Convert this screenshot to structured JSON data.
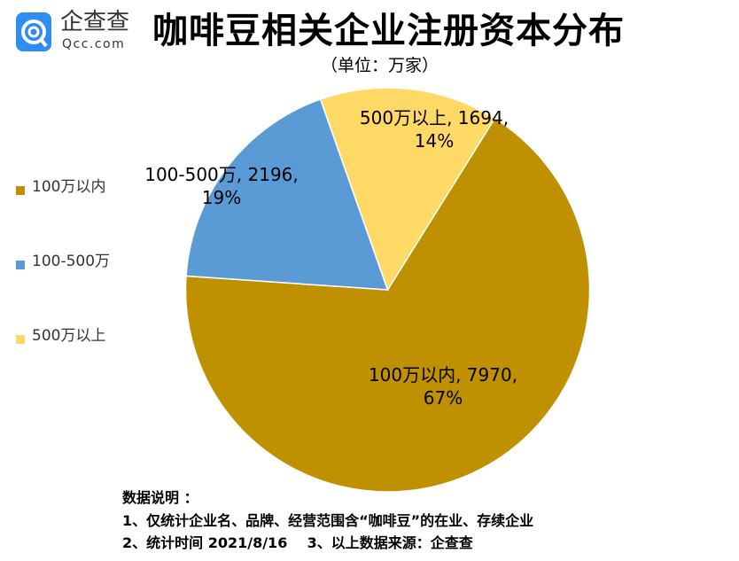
{
  "logo": {
    "name": "企查查",
    "domain": "Qcc.com"
  },
  "chart_data": {
    "type": "pie",
    "title": "咖啡豆相关企业注册资本分布",
    "subtitle": "（单位：万家）",
    "categories": [
      "100万以内",
      "100-500万",
      "500万以上"
    ],
    "values": [
      7970,
      2196,
      1694
    ],
    "percents": [
      67,
      19,
      14
    ],
    "colors": [
      "#bf9000",
      "#5b9bd5",
      "#ffd966"
    ],
    "data_labels": [
      "100万以内, 7970,|67%",
      "100-500万, 2196,|19%",
      "500万以上, 1694,|14%"
    ],
    "legend_position": "left"
  },
  "legend": [
    "100万以内",
    "100-500万",
    "500万以上"
  ],
  "labels": [
    {
      "l1": "100万以内, 7970,",
      "l2": "67%"
    },
    {
      "l1": "100-500万, 2196,",
      "l2": "19%"
    },
    {
      "l1": "500万以上, 1694,",
      "l2": "14%"
    }
  ],
  "notes": {
    "heading": "数据说明 ：",
    "line1": "1、仅统计企业名、品牌、经营范围含“咖啡豆”的在业、存续企业",
    "line2": "2、统计时间 2021/8/16    3、以上数据来源：企查查"
  }
}
